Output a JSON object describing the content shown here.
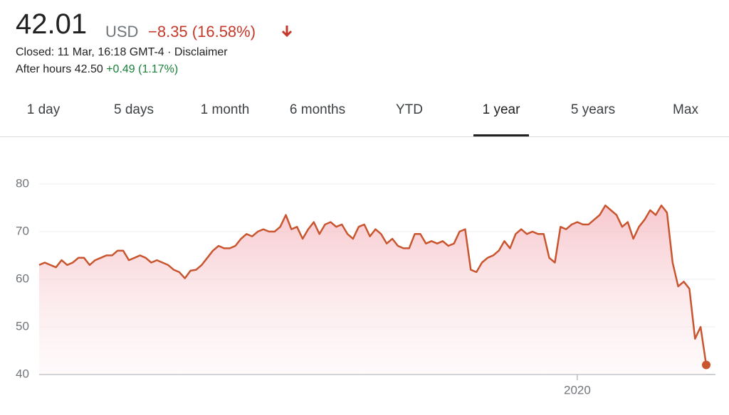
{
  "header": {
    "price": "42.01",
    "currency": "USD",
    "change": "−8.35 (16.58%)",
    "closed": "Closed: 11 Mar, 16:18 GMT-4 · ",
    "disclaimer": "Disclaimer",
    "after_hours": "After hours 42.50",
    "after_hours_change": "+0.49 (1.17%)"
  },
  "tabs": {
    "items": [
      "1 day",
      "5 days",
      "1 month",
      "6 months",
      "YTD",
      "1 year",
      "5 years",
      "Max"
    ],
    "active": 5
  },
  "chart_data": {
    "type": "line",
    "categories": [
      null,
      null,
      null,
      null,
      null,
      null,
      null,
      null,
      null,
      null,
      null,
      null,
      null,
      null,
      null,
      null,
      null,
      null,
      null,
      null,
      null,
      null,
      null,
      null,
      null,
      null,
      null,
      null,
      null,
      null,
      null,
      null,
      null,
      null,
      null,
      null,
      null,
      null,
      null,
      null,
      null,
      null,
      null,
      null,
      null,
      null,
      null,
      null,
      null,
      null,
      null,
      null,
      null,
      null,
      null,
      null,
      null,
      null,
      null,
      null,
      null,
      null,
      null,
      null,
      null,
      null,
      null,
      null,
      null,
      null,
      null,
      null,
      null,
      null,
      null,
      null,
      null,
      null,
      null,
      null,
      null,
      null,
      null,
      null,
      null,
      null,
      null,
      null,
      null,
      null,
      null,
      null,
      null,
      null,
      null,
      null,
      "2020",
      null,
      null,
      null,
      null,
      null,
      null,
      null,
      null,
      null,
      null,
      null,
      null,
      null,
      null,
      null,
      null,
      null,
      null,
      null,
      null,
      null,
      null,
      null
    ],
    "series": [
      {
        "color": "#c9552f",
        "values": [
          63,
          63.5,
          63,
          62.5,
          64,
          63,
          63.5,
          64.5,
          64.5,
          63,
          64,
          64.5,
          65,
          65,
          66,
          66,
          64,
          64.5,
          65,
          64.5,
          63.5,
          64,
          63.5,
          63,
          62,
          61.5,
          60.2,
          61.8,
          62,
          63,
          64.5,
          66,
          67,
          66.5,
          66.5,
          67,
          68.5,
          69.5,
          69,
          70,
          70.5,
          70,
          70,
          71,
          73.5,
          70.5,
          71,
          68.5,
          70.5,
          72,
          69.5,
          71.5,
          72,
          71,
          71.5,
          69.5,
          68.5,
          71,
          71.5,
          69,
          70.5,
          69.5,
          67.5,
          68.5,
          67,
          66.5,
          66.5,
          69.5,
          69.5,
          67.5,
          68,
          67.5,
          68,
          67,
          67.5,
          70,
          70.5,
          62,
          61.5,
          63.5,
          64.5,
          65,
          66,
          68,
          66.5,
          69.5,
          70.5,
          69.5,
          70,
          69.5,
          69.5,
          64.5,
          63.5,
          71,
          70.5,
          71.5,
          72,
          71.5,
          71.5,
          72.5,
          73.5,
          75.5,
          74.5,
          73.5,
          71,
          72,
          68.5,
          71,
          72.5,
          74.5,
          73.5,
          75.5,
          74,
          63.5,
          58.5,
          59.5,
          58,
          47.5,
          50,
          42.01
        ]
      }
    ],
    "ylim": [
      40,
      87
    ],
    "yticks": [
      40,
      50,
      60,
      70,
      80
    ],
    "grid": true
  }
}
